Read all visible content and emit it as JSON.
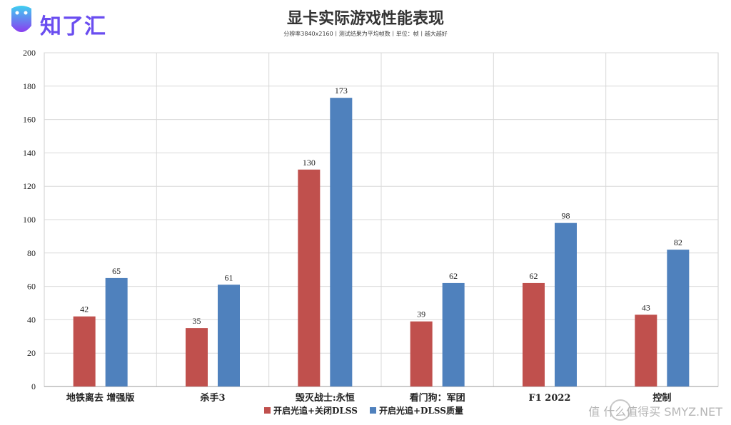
{
  "logo": {
    "text": "知了汇"
  },
  "header": {
    "title": "显卡实际游戏性能表现",
    "subtitle": "分辨率3840x2160丨测试结果为平均帧数丨单位：帧丨越大越好"
  },
  "watermark": {
    "text": "值 什么值得买 SMYZ.NET"
  },
  "colors": {
    "series1": "#c0504d",
    "series2": "#4f81bd"
  },
  "chart_data": {
    "type": "bar",
    "categories": [
      "地铁离去 增强版",
      "杀手3",
      "毁灭战士:永恒",
      "看门狗：军团",
      "F1 2022",
      "控制"
    ],
    "series": [
      {
        "name": "开启光追+关闭DLSS",
        "values": [
          42,
          35,
          130,
          39,
          62,
          43
        ]
      },
      {
        "name": "开启光追+DLSS质量",
        "values": [
          65,
          61,
          173,
          62,
          98,
          82
        ]
      }
    ],
    "ylim": [
      0,
      200
    ],
    "yticks": [
      0,
      20,
      40,
      60,
      80,
      100,
      120,
      140,
      160,
      180,
      200
    ],
    "grid": true,
    "legend": "bottom"
  }
}
